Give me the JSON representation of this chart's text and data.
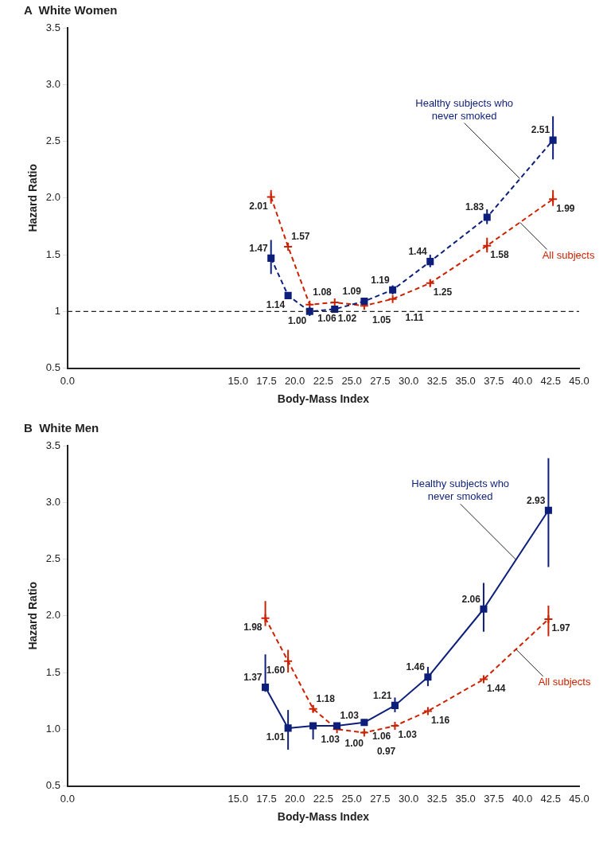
{
  "chart_data": [
    {
      "type": "line",
      "title": "A  White Women",
      "xlabel": "Body-Mass Index",
      "ylabel": "Hazard Ratio",
      "xlim": [
        0,
        45
      ],
      "ylim": [
        0.5,
        3.5
      ],
      "xticks": [
        {
          "value": 0,
          "label": "0.0"
        },
        {
          "value": 15,
          "label": "15.0"
        },
        17.5,
        {
          "value": 20,
          "label": "20.0"
        },
        22.5,
        {
          "value": 25,
          "label": "25.0"
        },
        27.5,
        {
          "value": 30,
          "label": "30.0"
        },
        32.5,
        {
          "value": 35,
          "label": "35.0"
        },
        37.5,
        {
          "value": 40,
          "label": "40.0"
        },
        42.5,
        {
          "value": 45,
          "label": "45.0"
        }
      ],
      "yticks": [
        0.5,
        1,
        1.5,
        {
          "value": 2,
          "label": "2.0"
        },
        2.5,
        {
          "value": 3,
          "label": "3.0"
        },
        3.5
      ],
      "grid": false,
      "legend": false,
      "ref_lines": [
        {
          "axis": "y",
          "value": 1,
          "line_style": "dashed",
          "color": "#222222"
        }
      ],
      "series": [
        {
          "name": "Healthy subjects who never smoked",
          "color": "#0d1f7a",
          "marker": "square",
          "line_style": "dashed",
          "x": [
            17.9,
            19.4,
            21.3,
            23.5,
            26.1,
            28.6,
            31.9,
            36.9,
            42.7
          ],
          "values": [
            1.47,
            1.14,
            1.0,
            1.02,
            1.09,
            1.19,
            1.44,
            1.83,
            2.51
          ],
          "value_labels": [
            "1.47",
            "1.14",
            "1.00",
            "1.02",
            "1.09",
            "1.19",
            "1.44",
            "1.83",
            "2.51"
          ],
          "errors": [
            [
              1.33,
              1.63
            ],
            null,
            [
              0.96,
              1.04
            ],
            null,
            null,
            [
              1.15,
              1.23
            ],
            [
              1.39,
              1.5
            ],
            [
              1.77,
              1.9
            ],
            [
              2.34,
              2.72
            ]
          ]
        },
        {
          "name": "All subjects",
          "color": "#cc2200",
          "marker": "cross",
          "line_style": "dashed",
          "x": [
            17.9,
            19.4,
            21.3,
            23.5,
            26.1,
            28.6,
            31.9,
            36.9,
            42.7
          ],
          "values": [
            2.01,
            1.57,
            1.06,
            1.08,
            1.05,
            1.11,
            1.25,
            1.58,
            1.99
          ],
          "value_labels": [
            "2.01",
            "1.57",
            "1.06",
            "1.08",
            "1.05",
            "1.11",
            "1.25",
            "1.58",
            "1.99"
          ],
          "errors": [
            [
              1.95,
              2.07
            ],
            null,
            null,
            null,
            null,
            null,
            [
              1.22,
              1.28
            ],
            [
              1.52,
              1.65
            ],
            [
              1.93,
              2.07
            ]
          ]
        }
      ]
    },
    {
      "type": "line",
      "title": "B  White Men",
      "xlabel": "Body-Mass Index",
      "ylabel": "Hazard Ratio",
      "xlim": [
        0,
        45
      ],
      "ylim": [
        0.5,
        3.5
      ],
      "xticks": [
        {
          "value": 0,
          "label": "0.0"
        },
        {
          "value": 15,
          "label": "15.0"
        },
        17.5,
        {
          "value": 20,
          "label": "20.0"
        },
        22.5,
        {
          "value": 25,
          "label": "25.0"
        },
        27.5,
        {
          "value": 30,
          "label": "30.0"
        },
        32.5,
        {
          "value": 35,
          "label": "35.0"
        },
        37.5,
        {
          "value": 40,
          "label": "40.0"
        },
        42.5,
        {
          "value": 45,
          "label": "45.0"
        }
      ],
      "yticks": [
        0.5,
        {
          "value": 1,
          "label": "1.0"
        },
        1.5,
        {
          "value": 2,
          "label": "2.0"
        },
        2.5,
        {
          "value": 3,
          "label": "3.0"
        },
        3.5
      ],
      "grid": false,
      "legend": false,
      "series": [
        {
          "name": "Healthy subjects who never smoked",
          "color": "#0d1f7a",
          "marker": "square",
          "line_style": "solid",
          "x": [
            17.4,
            19.4,
            21.6,
            23.7,
            26.1,
            28.8,
            31.7,
            36.6,
            42.3
          ],
          "values": [
            1.37,
            1.01,
            1.03,
            1.03,
            1.06,
            1.21,
            1.46,
            2.06,
            2.93
          ],
          "value_labels": [
            "1.37",
            "1.01",
            "1.03",
            "1.03",
            "1.06",
            "1.21",
            "1.46",
            "2.06",
            "2.93"
          ],
          "errors": [
            [
              1.33,
              1.66
            ],
            [
              0.82,
              1.17
            ],
            [
              0.91,
              1.05
            ],
            null,
            null,
            [
              1.15,
              1.28
            ],
            [
              1.38,
              1.55
            ],
            [
              1.86,
              2.29
            ],
            [
              2.43,
              3.39
            ]
          ]
        },
        {
          "name": "All subjects",
          "color": "#cc2200",
          "marker": "cross",
          "line_style": "dashed",
          "x": [
            17.4,
            19.4,
            21.6,
            23.7,
            26.1,
            28.8,
            31.7,
            36.6,
            42.3
          ],
          "values": [
            1.98,
            1.6,
            1.18,
            1.0,
            0.97,
            1.03,
            1.16,
            1.44,
            1.97
          ],
          "value_labels": [
            "1.98",
            "1.60",
            "1.18",
            "1.00",
            "0.97",
            "1.03",
            "1.16",
            "1.44",
            "1.97"
          ],
          "errors": [
            [
              1.91,
              2.13
            ],
            [
              1.5,
              1.7
            ],
            [
              1.15,
              1.21
            ],
            null,
            null,
            null,
            null,
            null,
            [
              1.82,
              2.09
            ]
          ]
        }
      ]
    }
  ]
}
